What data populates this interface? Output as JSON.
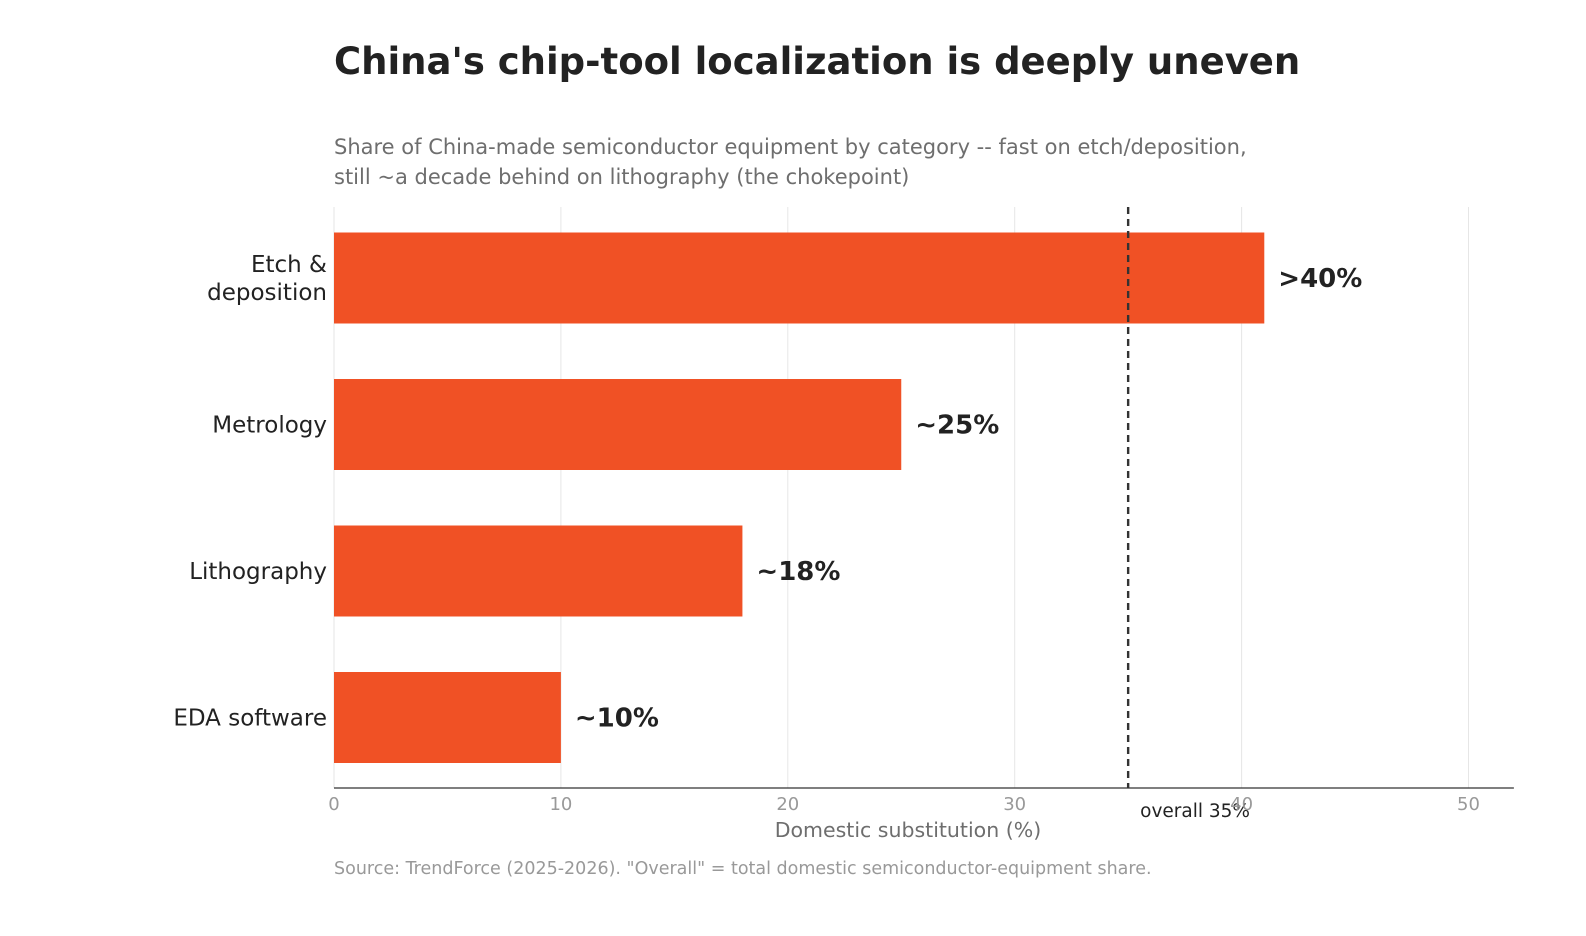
{
  "header": {
    "title": "China's chip-tool localization is deeply uneven",
    "subtitle_lines": [
      "Share of China-made semiconductor equipment by category -- fast on etch/deposition,",
      "still ~a decade behind on lithography (the chokepoint)"
    ]
  },
  "footer": {
    "source": "Source: TrendForce (2025-2026). \"Overall\" = total domestic semiconductor-equipment share."
  },
  "colors": {
    "bar": "#f05125",
    "text": "#222222",
    "muted": "#6e6e6e",
    "grid": "#e6e6e6",
    "reference": "#333333"
  },
  "chart_data": {
    "type": "bar",
    "orientation": "horizontal",
    "categories": [
      [
        "Etch &",
        "deposition"
      ],
      [
        "Metrology"
      ],
      [
        "Lithography"
      ],
      [
        "EDA software"
      ]
    ],
    "values": [
      41,
      25,
      18,
      10
    ],
    "data_labels": [
      ">40%",
      "~25%",
      "~18%",
      "~10%"
    ],
    "xlabel": "Domestic substitution (%)",
    "xlim": [
      0,
      52
    ],
    "xticks": [
      0,
      10,
      20,
      30,
      40,
      50
    ],
    "grid": "vertical",
    "reference_line": {
      "value": 35,
      "label": "overall 35%",
      "style": "dashed"
    }
  }
}
